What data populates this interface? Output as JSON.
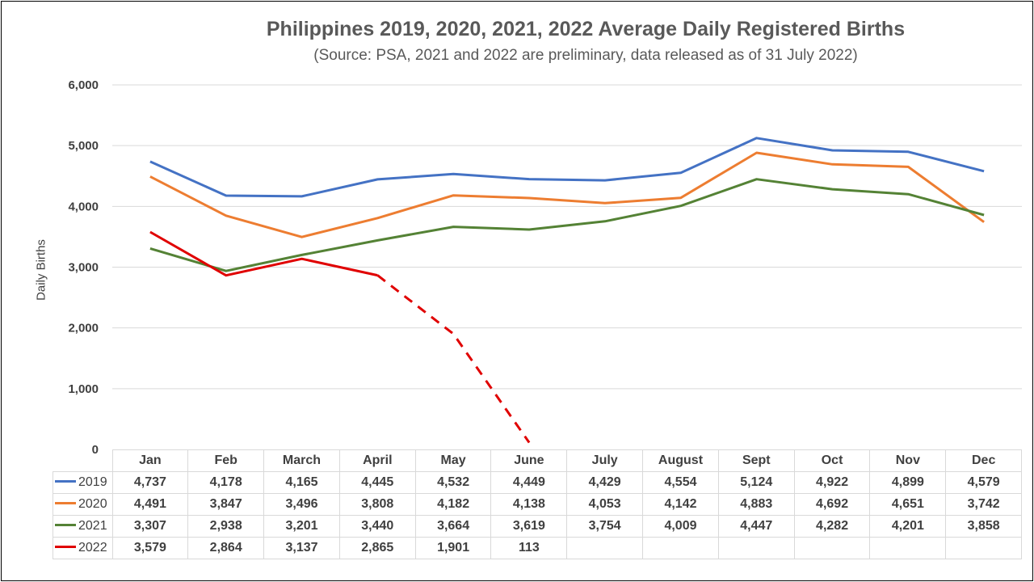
{
  "chart_data": {
    "type": "line",
    "title": "Philippines 2019, 2020, 2021, 2022 Average Daily Registered Births",
    "subtitle": "(Source: PSA, 2021 and 2022 are preliminary, data released as of 31 July 2022)",
    "xlabel": "",
    "ylabel": "Daily Births",
    "ylim": [
      0,
      6000
    ],
    "yticks": [
      "0",
      "1,000",
      "2,000",
      "3,000",
      "4,000",
      "5,000",
      "6,000"
    ],
    "grid": true,
    "categories": [
      "Jan",
      "Feb",
      "March",
      "April",
      "May",
      "June",
      "July",
      "August",
      "Sept",
      "Oct",
      "Nov",
      "Dec"
    ],
    "series": [
      {
        "name": "2019",
        "color": "#4472c4",
        "values": [
          4737,
          4178,
          4165,
          4445,
          4532,
          4449,
          4429,
          4554,
          5124,
          4922,
          4899,
          4579
        ],
        "labels": [
          "4,737",
          "4,178",
          "4,165",
          "4,445",
          "4,532",
          "4,449",
          "4,429",
          "4,554",
          "5,124",
          "4,922",
          "4,899",
          "4,579"
        ]
      },
      {
        "name": "2020",
        "color": "#ed7d31",
        "values": [
          4491,
          3847,
          3496,
          3808,
          4182,
          4138,
          4053,
          4142,
          4883,
          4692,
          4651,
          3742
        ],
        "labels": [
          "4,491",
          "3,847",
          "3,496",
          "3,808",
          "4,182",
          "4,138",
          "4,053",
          "4,142",
          "4,883",
          "4,692",
          "4,651",
          "3,742"
        ]
      },
      {
        "name": "2021",
        "color": "#548235",
        "values": [
          3307,
          2938,
          3201,
          3440,
          3664,
          3619,
          3754,
          4009,
          4447,
          4282,
          4201,
          3858
        ],
        "labels": [
          "3,307",
          "2,938",
          "3,201",
          "3,440",
          "3,664",
          "3,619",
          "3,754",
          "4,009",
          "4,447",
          "4,282",
          "4,201",
          "3,858"
        ]
      },
      {
        "name": "2022",
        "color": "#e00000",
        "dashed_from_index": 3,
        "values": [
          3579,
          2864,
          3137,
          2865,
          1901,
          113,
          null,
          null,
          null,
          null,
          null,
          null
        ],
        "labels": [
          "3,579",
          "2,864",
          "3,137",
          "2,865",
          "1,901",
          "113",
          "",
          "",
          "",
          "",
          "",
          ""
        ]
      }
    ]
  }
}
